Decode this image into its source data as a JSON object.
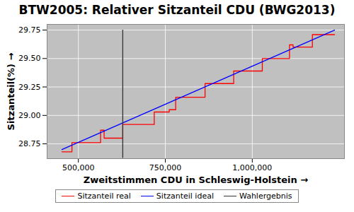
{
  "chart_data": {
    "type": "line",
    "title": "BTW2005: Relativer Sitzanteil CDU (BWG2013)",
    "x_label": "Zweitstimmen CDU in Schleswig-Holstein",
    "y_label": "Sitzanteil(%)",
    "xlim": [
      410000,
      1265000
    ],
    "ylim": [
      28.62,
      29.8
    ],
    "xticks": [
      {
        "value": 500000,
        "label": "500,000"
      },
      {
        "value": 750000,
        "label": "750,000"
      },
      {
        "value": 1000000,
        "label": "1,000,000"
      }
    ],
    "yticks": [
      28.75,
      {
        "value": 29,
        "label": "29.00"
      },
      29.25,
      {
        "value": 29.5,
        "label": "29.50"
      },
      29.75
    ],
    "grid": true,
    "legend": "bottom",
    "series": [
      {
        "name": "Sitzanteil real",
        "color": "#ff0000",
        "type": "step",
        "x": [
          452700,
          481500,
          563800,
          574000,
          627600,
          718100,
          761300,
          779800,
          864200,
          946500,
          1028800,
          1107000,
          1117300,
          1172800,
          1236600
        ],
        "values": [
          28.68,
          28.76,
          28.87,
          28.8,
          28.92,
          29.03,
          29.05,
          29.16,
          29.28,
          29.39,
          29.5,
          29.62,
          29.6,
          29.71,
          29.71
        ]
      },
      {
        "name": "Sitzanteil ideal",
        "color": "#0000ff",
        "type": "line",
        "x": [
          452700,
          1236600
        ],
        "values": [
          28.7,
          29.75
        ]
      },
      {
        "name": "Wahlergebnis",
        "color": "#333333",
        "type": "line",
        "x": [
          627600,
          627600
        ],
        "values": [
          28.63,
          29.75
        ]
      }
    ]
  }
}
